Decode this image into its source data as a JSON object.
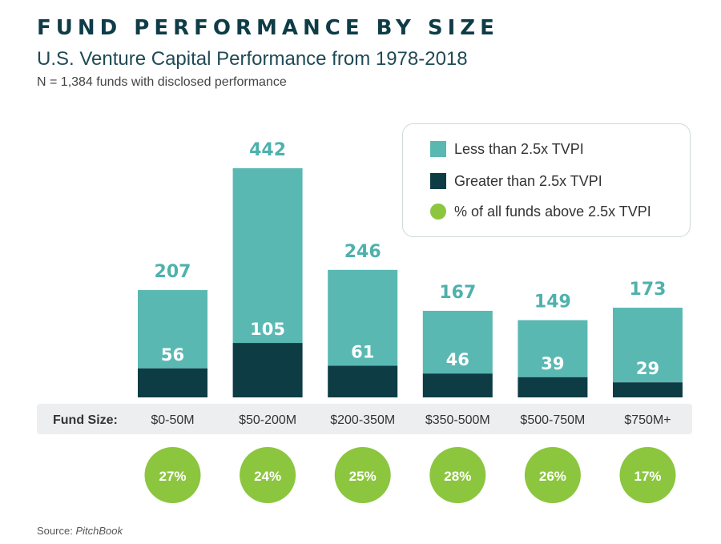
{
  "header": {
    "title": "FUND PERFORMANCE BY SIZE",
    "subtitle": "U.S. Venture Capital Performance from 1978-2018",
    "note": "N = 1,384 funds with disclosed performance"
  },
  "legend": {
    "items": [
      {
        "label": "Less than 2.5x TVPI",
        "color": "#5ab8b3",
        "shape": "square"
      },
      {
        "label": "Greater than 2.5x TVPI",
        "color": "#0d3c45",
        "shape": "square"
      },
      {
        "label": "% of all funds above 2.5x TVPI",
        "color": "#8cc63f",
        "shape": "circle"
      }
    ]
  },
  "footer": {
    "source_label": "Source:",
    "source_name": "PitchBook"
  },
  "chart_data": {
    "type": "bar",
    "stacked": true,
    "title": "FUND PERFORMANCE BY SIZE",
    "subtitle": "U.S. Venture Capital Performance from 1978-2018",
    "xlabel": "Fund Size:",
    "ylabel": "",
    "ylim": [
      0,
      442
    ],
    "categories": [
      "$0-50M",
      "$50-200M",
      "$200-350M",
      "$350-500M",
      "$500-750M",
      "$750M+"
    ],
    "totals": [
      207,
      442,
      246,
      167,
      149,
      173
    ],
    "series": [
      {
        "name": "Less than 2.5x TVPI",
        "values": [
          151,
          337,
          185,
          121,
          110,
          144
        ],
        "color": "#5ab8b3"
      },
      {
        "name": "Greater than 2.5x TVPI",
        "values": [
          56,
          105,
          61,
          46,
          39,
          29
        ],
        "color": "#0d3c45"
      }
    ],
    "pct_above": [
      "27%",
      "24%",
      "25%",
      "28%",
      "26%",
      "17%"
    ],
    "pct_color": "#8cc63f",
    "axis_band_color": "#eceeef"
  }
}
